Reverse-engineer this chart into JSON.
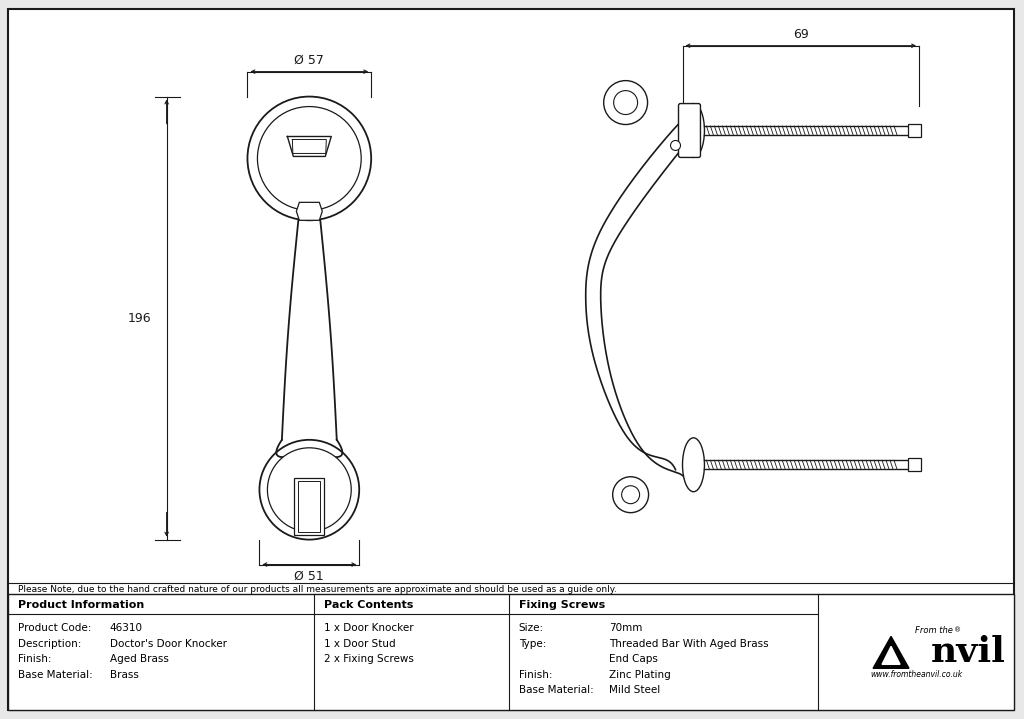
{
  "bg_color": "#e8e8e8",
  "border_color": "#1a1a1a",
  "line_color": "#1a1a1a",
  "dim_color": "#1a1a1a",
  "note_text": "Please Note, due to the hand crafted nature of our products all measurements are approximate and should be used as a guide only.",
  "product_info_header": "Product Information",
  "pack_contents_header": "Pack Contents",
  "fixing_screws_header": "Fixing Screws",
  "product_code_label": "Product Code:",
  "product_code_value": "46310",
  "description_label": "Description:",
  "description_value": "Doctor's Door Knocker",
  "finish_label": "Finish:",
  "finish_value": "Aged Brass",
  "base_material_label": "Base Material:",
  "base_material_value": "Brass",
  "pack_line1": "1 x Door Knocker",
  "pack_line2": "1 x Door Stud",
  "pack_line3": "2 x Fixing Screws",
  "size_label": "Size:",
  "size_value": "70mm",
  "type_label": "Type:",
  "type_value": "Threaded Bar With Aged Brass",
  "type_value2": "End Caps",
  "finish_screw_label": "Finish:",
  "finish_screw_value": "Zinc Plating",
  "base_material_screw_label": "Base Material:",
  "base_material_screw_value": "Mild Steel",
  "dim_57": "Ø 57",
  "dim_69": "69",
  "dim_196": "196",
  "dim_51": "Ø 51",
  "website": "www.fromtheanvil.co.uk"
}
